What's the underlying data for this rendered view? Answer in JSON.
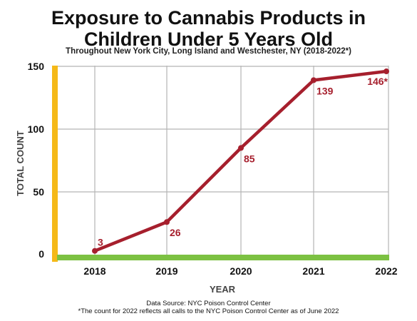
{
  "chart_data": {
    "type": "line",
    "title": "Exposure to Cannabis Products in Children Under 5 Years Old",
    "title_lines": [
      "Exposure to Cannabis Products in",
      "Children Under 5 Years Old"
    ],
    "subtitle": "Throughout New York City, Long Island and Westchester, NY (2018-2022*)",
    "xlabel": "YEAR",
    "ylabel": "TOTAL COUNT",
    "categories": [
      "2018",
      "2019",
      "2020",
      "2021",
      "2022"
    ],
    "series": [
      {
        "values": [
          3,
          26,
          85,
          139,
          146
        ]
      }
    ],
    "data_labels": [
      "3",
      "26",
      "85",
      "139",
      "146*"
    ],
    "y_ticks": [
      "0",
      "50",
      "100",
      "150"
    ],
    "ylim": [
      0,
      150
    ],
    "grid": true,
    "colors": {
      "line": "#a61f2d",
      "y_axis": "#f5b918",
      "x_axis": "#7cc142",
      "grid": "#b5b5b5"
    }
  },
  "footer": {
    "source": "Data Source: NYC Poison Control Center",
    "note": "*The count for 2022 reflects all calls to the NYC Poison Control Center as of June 2022"
  }
}
